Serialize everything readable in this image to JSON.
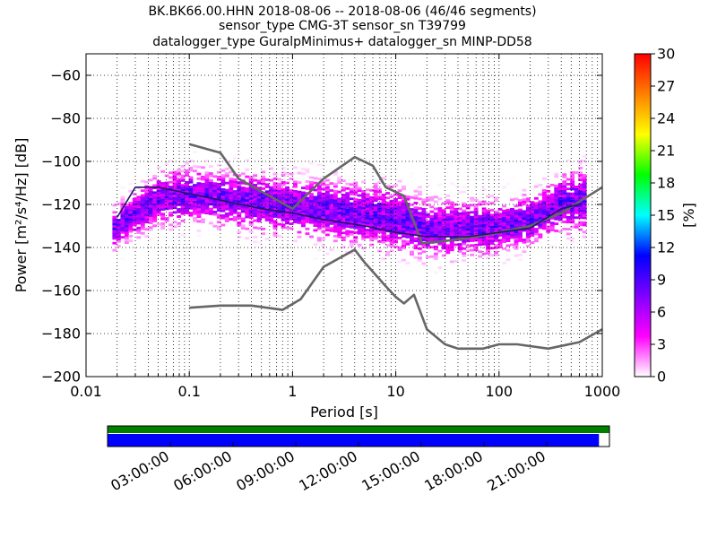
{
  "chart_data": {
    "type": "heatmap",
    "title": [
      "BK.BK66.00.HHN   2018-08-06 -- 2018-08-06  (46/46 segments)",
      "sensor_type CMG-3T sensor_sn T39799",
      "datalogger_type GuralpMinimus+ datalogger_sn MINP-DD58"
    ],
    "xlabel": "Period [s]",
    "ylabel": "Power [m²/s⁴/Hz] [dB]",
    "x_scale": "log",
    "xlim": [
      0.01,
      1000
    ],
    "ylim": [
      -200,
      -50
    ],
    "x_ticks": [
      {
        "value": 0.01,
        "label": "0.01"
      },
      {
        "value": 0.1,
        "label": "0.1"
      },
      {
        "value": 1,
        "label": "1"
      },
      {
        "value": 10,
        "label": "10"
      },
      {
        "value": 100,
        "label": "100"
      },
      {
        "value": 1000,
        "label": "1000"
      }
    ],
    "y_ticks": [
      {
        "value": -60,
        "label": "−60"
      },
      {
        "value": -80,
        "label": "−80"
      },
      {
        "value": -100,
        "label": "−100"
      },
      {
        "value": -120,
        "label": "−120"
      },
      {
        "value": -140,
        "label": "−140"
      },
      {
        "value": -160,
        "label": "−160"
      },
      {
        "value": -180,
        "label": "−180"
      },
      {
        "value": -200,
        "label": "−200"
      }
    ],
    "grid": true,
    "colorbar": {
      "label": "[%]",
      "range": [
        0,
        30
      ],
      "ticks": [
        "0",
        "3",
        "6",
        "9",
        "12",
        "15",
        "18",
        "21",
        "24",
        "27",
        "30"
      ],
      "colormap": [
        "#ffffff",
        "#ff00ff",
        "#8000ff",
        "#0000ff",
        "#00ffff",
        "#00ff00",
        "#ffff00",
        "#ff8000",
        "#ff0000"
      ]
    },
    "series": [
      {
        "values": [
          [
            0.1,
            -92
          ],
          [
            0.2,
            -96
          ],
          [
            0.3,
            -108
          ],
          [
            0.5,
            -114
          ],
          [
            1,
            -122
          ],
          [
            2,
            -108
          ],
          [
            4,
            -98
          ],
          [
            6,
            -102
          ],
          [
            8,
            -112
          ],
          [
            12,
            -116
          ],
          [
            18,
            -138
          ],
          [
            30,
            -137
          ],
          [
            60,
            -135
          ],
          [
            100,
            -133
          ],
          [
            200,
            -130
          ],
          [
            400,
            -124
          ],
          [
            1000,
            -112
          ]
        ]
      },
      {
        "values": [
          [
            0.1,
            -168
          ],
          [
            0.2,
            -167
          ],
          [
            0.4,
            -167
          ],
          [
            0.8,
            -169
          ],
          [
            1.2,
            -164
          ],
          [
            2,
            -149
          ],
          [
            4,
            -141
          ],
          [
            5,
            -147
          ],
          [
            8,
            -158
          ],
          [
            10,
            -163
          ],
          [
            12,
            -166
          ],
          [
            15,
            -162
          ],
          [
            20,
            -178
          ],
          [
            30,
            -185
          ],
          [
            40,
            -187
          ],
          [
            70,
            -187
          ],
          [
            100,
            -185
          ],
          [
            150,
            -185
          ],
          [
            300,
            -187
          ],
          [
            600,
            -184
          ],
          [
            1000,
            -178
          ]
        ]
      },
      {
        "values": [
          [
            0.02,
            -126
          ],
          [
            0.03,
            -112
          ],
          [
            0.05,
            -112
          ],
          [
            0.1,
            -115
          ],
          [
            0.2,
            -118
          ],
          [
            0.5,
            -122
          ],
          [
            1,
            -124
          ],
          [
            2,
            -127
          ],
          [
            5,
            -130
          ],
          [
            10,
            -133
          ],
          [
            20,
            -135
          ],
          [
            50,
            -135
          ],
          [
            100,
            -133
          ],
          [
            200,
            -131
          ],
          [
            400,
            -122
          ],
          [
            600,
            -120
          ]
        ]
      }
    ],
    "histogram": {
      "x_start": 0.018,
      "x_end": 700,
      "bands": [
        {
          "x": [
            0.018,
            0.05,
            0.1,
            1,
            10,
            20,
            100,
            200,
            400,
            700
          ],
          "y": [
            -132,
            -118,
            -116,
            -121,
            -127,
            -132,
            -131,
            -128,
            -120,
            -118
          ],
          "spread": [
            7,
            9,
            9,
            10,
            11,
            10,
            9,
            9,
            10,
            11
          ]
        }
      ]
    }
  },
  "timeline": {
    "ticks": [
      "03:00:00",
      "06:00:00",
      "09:00:00",
      "12:00:00",
      "15:00:00",
      "18:00:00",
      "21:00:00"
    ],
    "start_hour": 0,
    "end_hour": 24,
    "coverage_end_hour": 23.5,
    "top_color": "#008000",
    "bottom_color": "#0000ff"
  }
}
